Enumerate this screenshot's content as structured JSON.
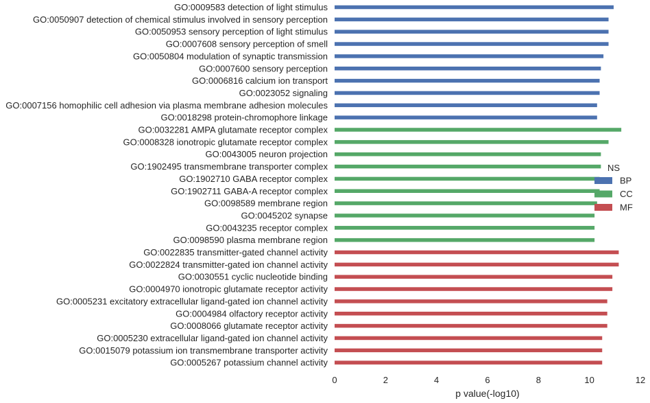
{
  "chart_data": {
    "type": "bar",
    "orientation": "horizontal",
    "xlabel": "p value(-log10)",
    "ylabel": "",
    "xlim": [
      0,
      12
    ],
    "xticks": [
      0,
      2,
      4,
      6,
      8,
      10,
      12
    ],
    "grid": false,
    "legend": {
      "title": "NS",
      "placement": "center-right",
      "entries": [
        "BP",
        "CC",
        "MF"
      ]
    },
    "colors": {
      "BP": "#4c72b0",
      "CC": "#55a868",
      "MF": "#c44e52"
    },
    "bars": [
      {
        "label": "GO:0009583 detection of light stimulus",
        "value": 10.95,
        "group": "BP"
      },
      {
        "label": "GO:0050907 detection of chemical stimulus involved in sensory perception",
        "value": 10.75,
        "group": "BP"
      },
      {
        "label": "GO:0050953 sensory perception of light stimulus",
        "value": 10.75,
        "group": "BP"
      },
      {
        "label": "GO:0007608 sensory perception of smell",
        "value": 10.75,
        "group": "BP"
      },
      {
        "label": "GO:0050804 modulation of synaptic transmission",
        "value": 10.55,
        "group": "BP"
      },
      {
        "label": "GO:0007600 sensory perception",
        "value": 10.45,
        "group": "BP"
      },
      {
        "label": "GO:0006816 calcium ion transport",
        "value": 10.4,
        "group": "BP"
      },
      {
        "label": "GO:0023052 signaling",
        "value": 10.4,
        "group": "BP"
      },
      {
        "label": "GO:0007156 homophilic cell adhesion via plasma membrane adhesion molecules",
        "value": 10.3,
        "group": "BP"
      },
      {
        "label": "GO:0018298 protein-chromophore linkage",
        "value": 10.3,
        "group": "BP"
      },
      {
        "label": "GO:0032281 AMPA glutamate receptor complex",
        "value": 11.25,
        "group": "CC"
      },
      {
        "label": "GO:0008328 ionotropic glutamate receptor complex",
        "value": 10.75,
        "group": "CC"
      },
      {
        "label": "GO:0043005 neuron projection",
        "value": 10.45,
        "group": "CC"
      },
      {
        "label": "GO:1902495 transmembrane transporter complex",
        "value": 10.45,
        "group": "CC"
      },
      {
        "label": "GO:1902710 GABA receptor complex",
        "value": 10.4,
        "group": "CC"
      },
      {
        "label": "GO:1902711 GABA-A receptor complex",
        "value": 10.4,
        "group": "CC"
      },
      {
        "label": "GO:0098589 membrane region",
        "value": 10.3,
        "group": "CC"
      },
      {
        "label": "GO:0045202 synapse",
        "value": 10.2,
        "group": "CC"
      },
      {
        "label": "GO:0043235 receptor complex",
        "value": 10.2,
        "group": "CC"
      },
      {
        "label": "GO:0098590 plasma membrane region",
        "value": 10.2,
        "group": "CC"
      },
      {
        "label": "GO:0022835 transmitter-gated channel activity",
        "value": 11.15,
        "group": "MF"
      },
      {
        "label": "GO:0022824 transmitter-gated ion channel activity",
        "value": 11.15,
        "group": "MF"
      },
      {
        "label": "GO:0030551 cyclic nucleotide binding",
        "value": 10.9,
        "group": "MF"
      },
      {
        "label": "GO:0004970 ionotropic glutamate receptor activity",
        "value": 10.9,
        "group": "MF"
      },
      {
        "label": "GO:0005231 excitatory extracellular ligand-gated ion channel activity",
        "value": 10.7,
        "group": "MF"
      },
      {
        "label": "GO:0004984 olfactory receptor activity",
        "value": 10.7,
        "group": "MF"
      },
      {
        "label": "GO:0008066 glutamate receptor activity",
        "value": 10.7,
        "group": "MF"
      },
      {
        "label": "GO:0005230 extracellular ligand-gated ion channel activity",
        "value": 10.5,
        "group": "MF"
      },
      {
        "label": "GO:0015079 potassium ion transmembrane transporter activity",
        "value": 10.5,
        "group": "MF"
      },
      {
        "label": "GO:0005267 potassium channel activity",
        "value": 10.5,
        "group": "MF"
      }
    ]
  }
}
